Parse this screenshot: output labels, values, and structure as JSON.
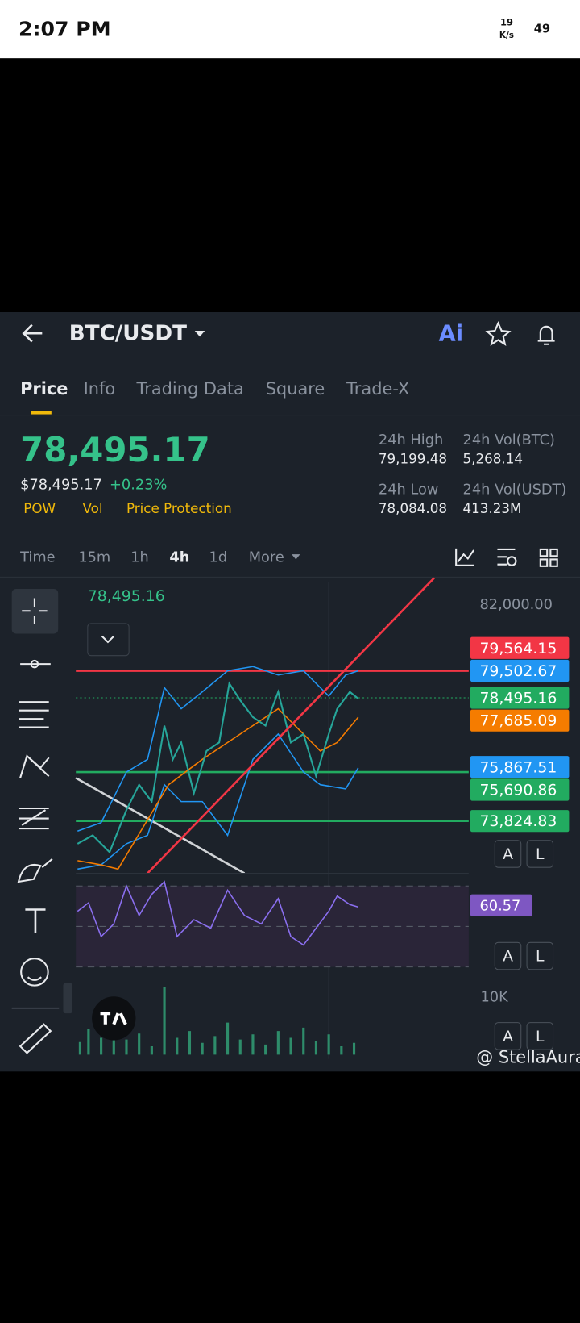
{
  "status_bar": {
    "time": "2:07 PM",
    "net_speed": "19",
    "net_unit": "K/s",
    "battery": "49"
  },
  "header": {
    "pair": "BTC/USDT",
    "ai": "Ai"
  },
  "tabs": [
    "Price",
    "Info",
    "Trading Data",
    "Square",
    "Trade-X"
  ],
  "price": {
    "last": "78,495.17",
    "usd": "$78,495.17",
    "change": "+0.23%",
    "tags": [
      "POW",
      "Vol",
      "Price Protection"
    ]
  },
  "stats": [
    {
      "label": "24h High",
      "value": "79,199.48"
    },
    {
      "label": "24h Vol(BTC)",
      "value": "5,268.14"
    },
    {
      "label": "24h Low",
      "value": "78,084.08"
    },
    {
      "label": "24h Vol(USDT)",
      "value": "413.23M"
    }
  ],
  "intervals": [
    "Time",
    "15m",
    "1h",
    "4h",
    "1d",
    "More"
  ],
  "chart": {
    "crosshair_price": "78,495.16",
    "axis_top": "82,000.00",
    "price_labels": [
      {
        "text": "79,564.15",
        "color": "#f23645"
      },
      {
        "text": "79,502.67",
        "color": "#2196f3"
      },
      {
        "text": "78,495.16",
        "color": "#22ab60"
      },
      {
        "text": "77,685.09",
        "color": "#f57c00"
      },
      {
        "text": "75,867.51",
        "color": "#2196f3"
      },
      {
        "text": "75,690.86",
        "color": "#22ab60"
      },
      {
        "text": "73,824.83",
        "color": "#22ab60"
      }
    ],
    "rsi_label": "60.57",
    "volume_axis": "10K",
    "auto_button": "A",
    "log_button": "L"
  },
  "watermark": "@ StellaAura"
}
